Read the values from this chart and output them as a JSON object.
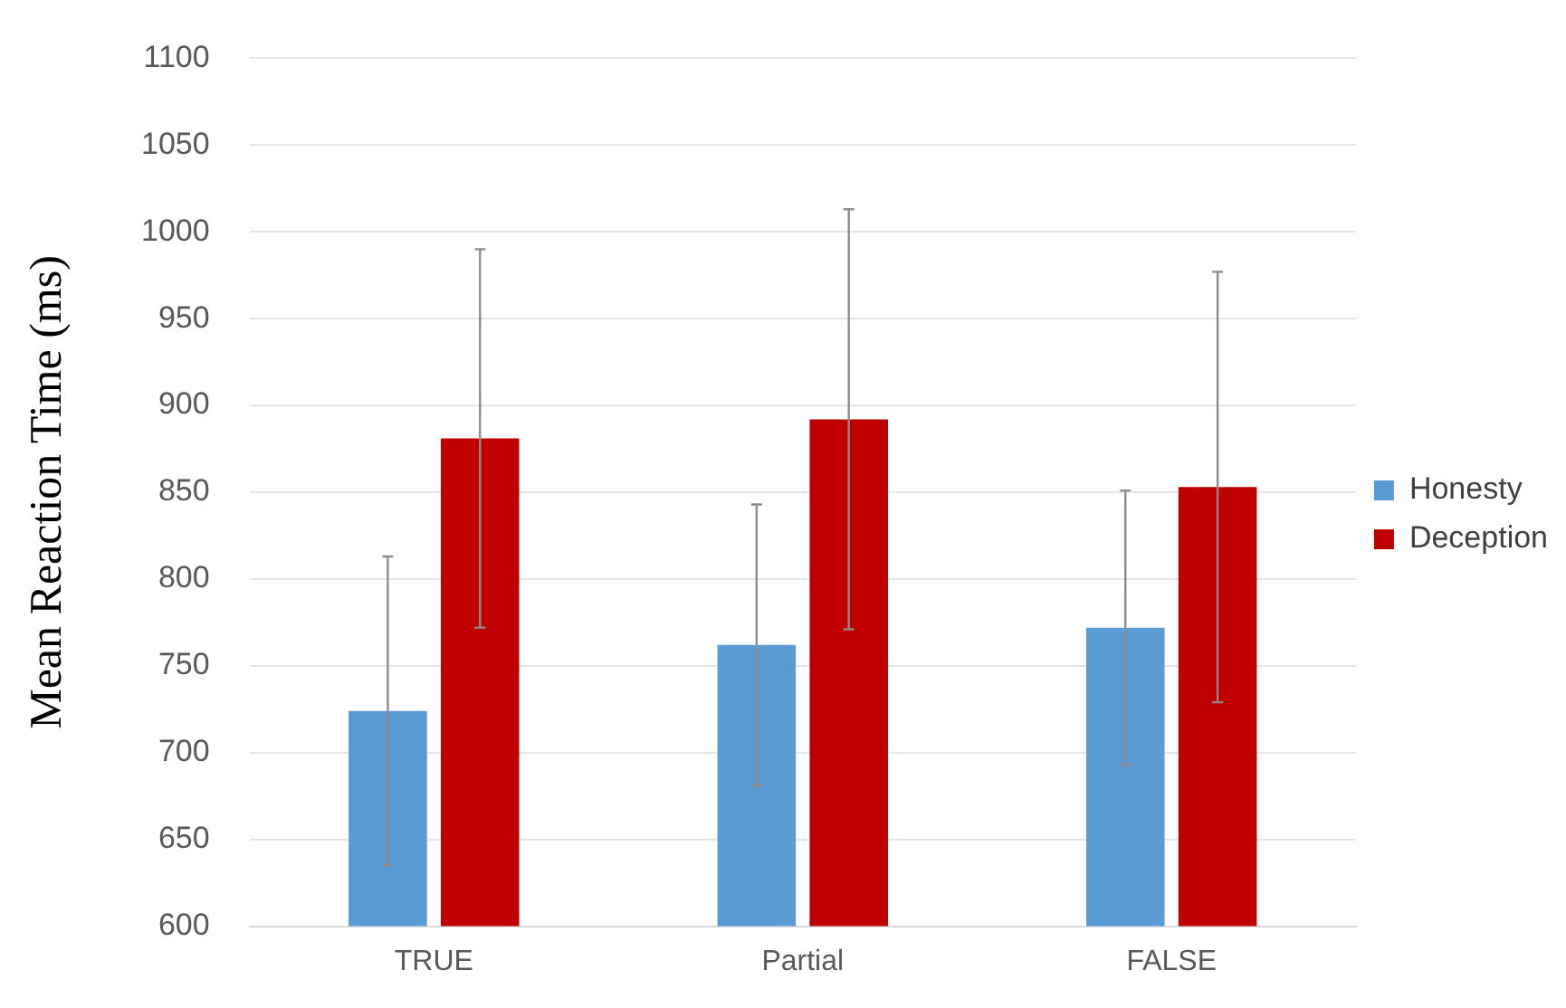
{
  "chart_data": {
    "type": "bar",
    "ylabel": "Mean Reaction Time (ms)",
    "categories": [
      "TRUE",
      "Partial",
      "FALSE"
    ],
    "series": [
      {
        "name": "Honesty",
        "color": "#5b9bd5",
        "values": [
          724,
          762,
          772
        ],
        "errors": [
          89,
          81,
          79
        ]
      },
      {
        "name": "Deception",
        "color": "#c00000",
        "values": [
          881,
          892,
          853
        ],
        "errors": [
          109,
          121,
          124
        ]
      }
    ],
    "ylim": [
      600,
      1100
    ],
    "yticks": [
      600,
      650,
      700,
      750,
      800,
      850,
      900,
      950,
      1000,
      1050,
      1100
    ],
    "grid": "y",
    "legend": "right"
  }
}
